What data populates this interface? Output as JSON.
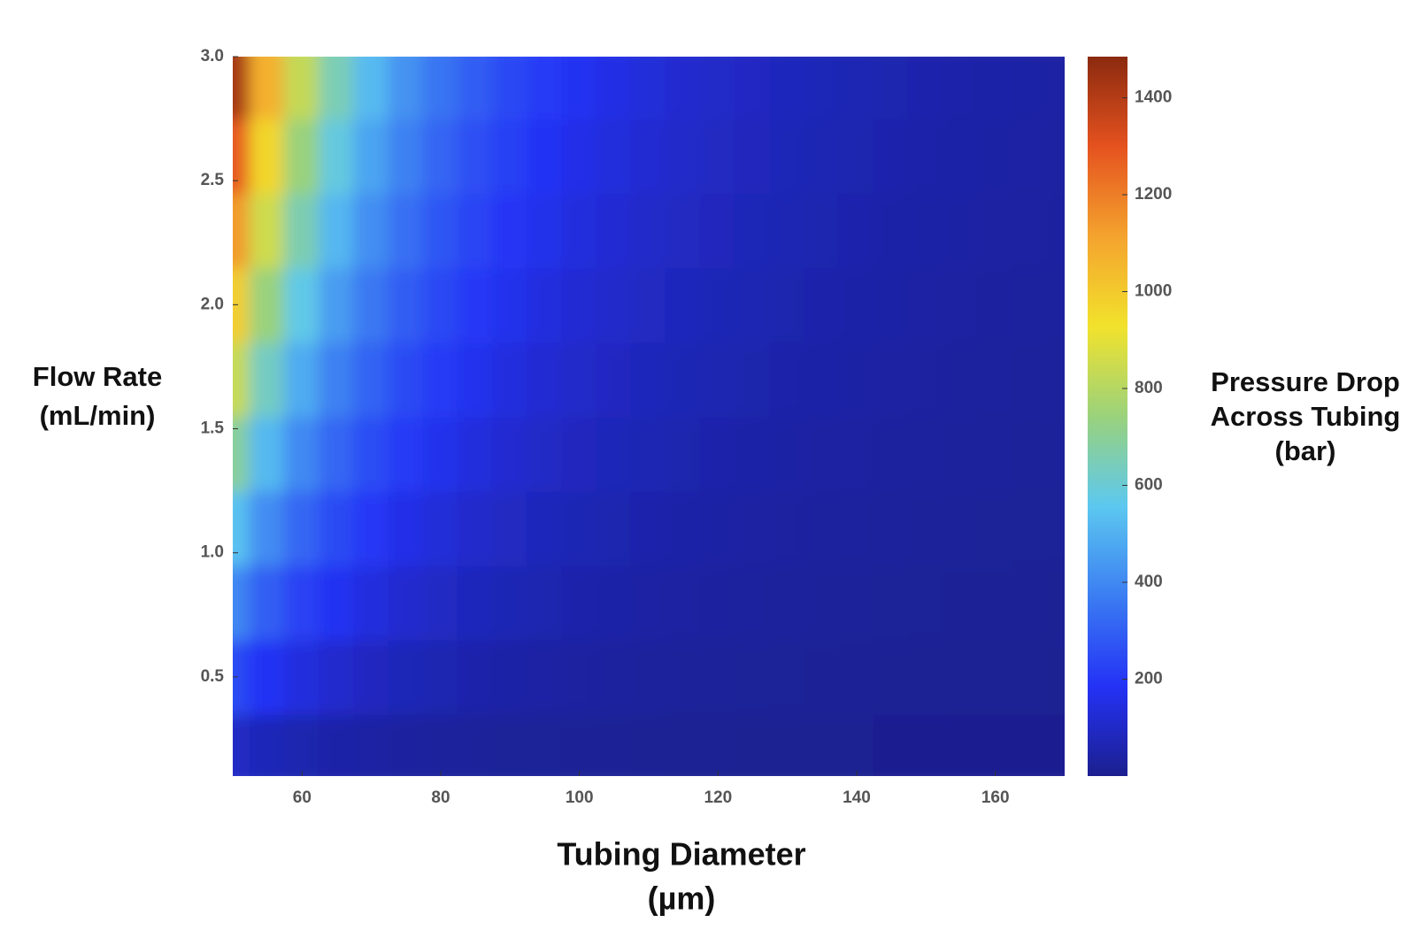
{
  "chart_data": {
    "type": "heatmap",
    "xlabel": [
      "Tubing Diameter",
      "(µm)"
    ],
    "ylabel": [
      "Flow Rate",
      "(mL/min)"
    ],
    "colorbar_label": [
      "Pressure Drop",
      "Across Tubing",
      "(bar)"
    ],
    "x": [
      50,
      55,
      60,
      65,
      70,
      75,
      80,
      85,
      90,
      95,
      100,
      105,
      110,
      115,
      120,
      125,
      130,
      135,
      140,
      145,
      150,
      155,
      160,
      165,
      170
    ],
    "y": [
      0.2,
      0.5,
      0.8,
      1.1,
      1.4,
      1.7,
      2.0,
      2.3,
      2.6,
      2.9
    ],
    "z": [
      [
        99,
        74,
        57,
        45,
        36,
        29,
        24,
        20,
        17,
        14,
        12,
        11,
        9,
        8,
        7,
        6,
        6,
        5,
        5,
        4,
        4,
        3,
        3,
        3,
        3
      ],
      [
        247,
        185,
        143,
        112,
        90,
        73,
        60,
        50,
        42,
        36,
        31,
        27,
        23,
        20,
        18,
        16,
        14,
        13,
        11,
        10,
        9,
        8,
        8,
        7,
        6
      ],
      [
        395,
        296,
        228,
        180,
        144,
        117,
        96,
        80,
        68,
        58,
        49,
        43,
        37,
        32,
        29,
        25,
        22,
        20,
        18,
        16,
        15,
        13,
        12,
        11,
        10
      ],
      [
        543,
        408,
        314,
        247,
        198,
        161,
        132,
        110,
        93,
        79,
        68,
        59,
        51,
        45,
        39,
        35,
        31,
        28,
        25,
        22,
        20,
        18,
        17,
        15,
        14
      ],
      [
        691,
        519,
        400,
        314,
        252,
        205,
        169,
        141,
        118,
        101,
        86,
        75,
        65,
        57,
        50,
        44,
        39,
        35,
        32,
        28,
        26,
        23,
        21,
        19,
        18
      ],
      [
        839,
        630,
        485,
        382,
        306,
        249,
        205,
        171,
        144,
        122,
        105,
        91,
        79,
        69,
        61,
        54,
        48,
        43,
        38,
        34,
        31,
        28,
        26,
        23,
        21
      ],
      [
        987,
        741,
        571,
        449,
        360,
        292,
        241,
        201,
        169,
        144,
        123,
        107,
        93,
        81,
        71,
        63,
        56,
        50,
        45,
        40,
        37,
        33,
        30,
        27,
        25
      ],
      [
        1135,
        852,
        657,
        516,
        414,
        336,
        277,
        231,
        195,
        165,
        142,
        123,
        106,
        93,
        82,
        73,
        65,
        58,
        52,
        46,
        42,
        38,
        35,
        32,
        29
      ],
      [
        1283,
        964,
        742,
        584,
        467,
        380,
        313,
        261,
        220,
        187,
        160,
        139,
        120,
        105,
        93,
        82,
        73,
        65,
        59,
        53,
        48,
        43,
        39,
        36,
        33
      ],
      [
        1431,
        1075,
        828,
        651,
        521,
        424,
        349,
        291,
        245,
        209,
        179,
        155,
        134,
        117,
        104,
        92,
        81,
        73,
        65,
        59,
        53,
        48,
        44,
        40,
        37
      ]
    ],
    "xlim": [
      50,
      170
    ],
    "ylim": [
      0.1,
      3
    ],
    "xticks": [
      60,
      80,
      100,
      120,
      140,
      160
    ],
    "yticks": [
      0.5,
      {
        "value": 1,
        "label": "1.0"
      },
      1.5,
      {
        "value": 2,
        "label": "2.0"
      },
      2.5,
      {
        "value": 3,
        "label": "3.0"
      }
    ],
    "clim": [
      0,
      1485
    ],
    "cticks": [
      200,
      400,
      600,
      800,
      1000,
      1200,
      1400
    ],
    "colormap": [
      "#1c1f8f",
      "#2432f5",
      "#3b7df2",
      "#5cc8f0",
      "#9ad27c",
      "#f2e22c",
      "#f4a32e",
      "#e5521f",
      "#8b2a0f"
    ]
  }
}
